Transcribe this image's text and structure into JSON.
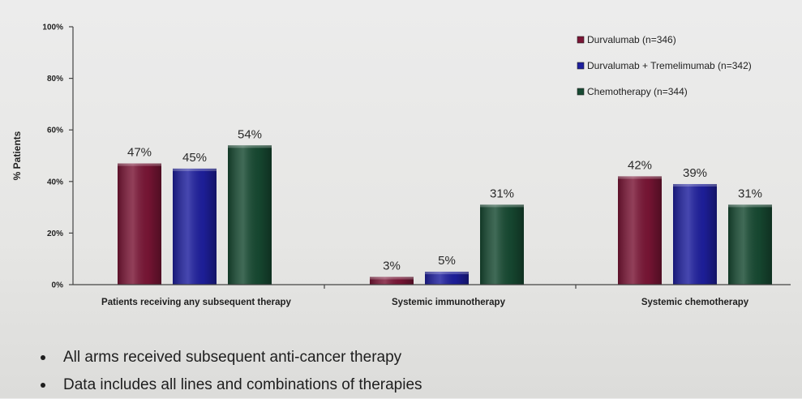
{
  "chart_data": {
    "type": "bar",
    "categories": [
      "Patients receiving any subsequent therapy",
      "Systemic immunotherapy",
      "Systemic chemotherapy"
    ],
    "series": [
      {
        "name": "Durvalumab (n=346)",
        "color": "#7a1535",
        "values": [
          47,
          3,
          42
        ],
        "labels": [
          "47%",
          "3%",
          "42%"
        ]
      },
      {
        "name": "Durvalumab + Tremelimumab (n=342)",
        "color": "#1e1f9e",
        "values": [
          45,
          5,
          39
        ],
        "labels": [
          "45%",
          "5%",
          "39%"
        ]
      },
      {
        "name": "Chemotherapy (n=344)",
        "color": "#174a32",
        "values": [
          54,
          31,
          31
        ],
        "labels": [
          "54%",
          "31%",
          "31%"
        ]
      }
    ],
    "ylabel": "% Patients",
    "ylim": [
      0,
      100
    ],
    "yticks": [
      0,
      20,
      40,
      60,
      80,
      100
    ],
    "ytick_labels": [
      "0%",
      "20%",
      "40%",
      "60%",
      "80%",
      "100%"
    ],
    "grid": false,
    "legend_position": "top-right"
  },
  "bullets": [
    "All arms received subsequent anti-cancer therapy",
    "Data includes all lines and combinations of therapies"
  ]
}
